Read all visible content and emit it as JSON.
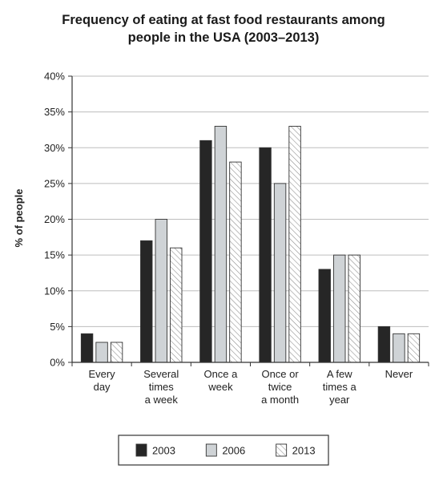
{
  "chart_data": {
    "type": "bar",
    "title_lines": [
      "Frequency of eating at fast food restaurants among",
      "people in the USA (2003–2013)"
    ],
    "xlabel": "",
    "ylabel": "% of people",
    "ylim": [
      0,
      40
    ],
    "yticks": [
      "0%",
      "5%",
      "10%",
      "15%",
      "20%",
      "25%",
      "30%",
      "35%",
      "40%"
    ],
    "ytick_values": [
      0,
      5,
      10,
      15,
      20,
      25,
      30,
      35,
      40
    ],
    "grid": true,
    "legend_position": "bottom",
    "categories": [
      [
        "Every",
        "day"
      ],
      [
        "Several",
        "times",
        "a week"
      ],
      [
        "Once a",
        "week"
      ],
      [
        "Once or",
        "twice",
        "a month"
      ],
      [
        "A few",
        "times a",
        "year"
      ],
      [
        "Never"
      ]
    ],
    "series": [
      {
        "name": "2003",
        "values": [
          4,
          17,
          31,
          30,
          13,
          5
        ],
        "color": "#262626",
        "pattern": "solid"
      },
      {
        "name": "2006",
        "values": [
          2.8,
          20,
          33,
          25,
          15,
          4
        ],
        "color": "#cfd3d6",
        "pattern": "solid"
      },
      {
        "name": "2013",
        "values": [
          2.8,
          16,
          28,
          33,
          15,
          4
        ],
        "color": "#ffffff",
        "pattern": "hatch"
      }
    ]
  }
}
